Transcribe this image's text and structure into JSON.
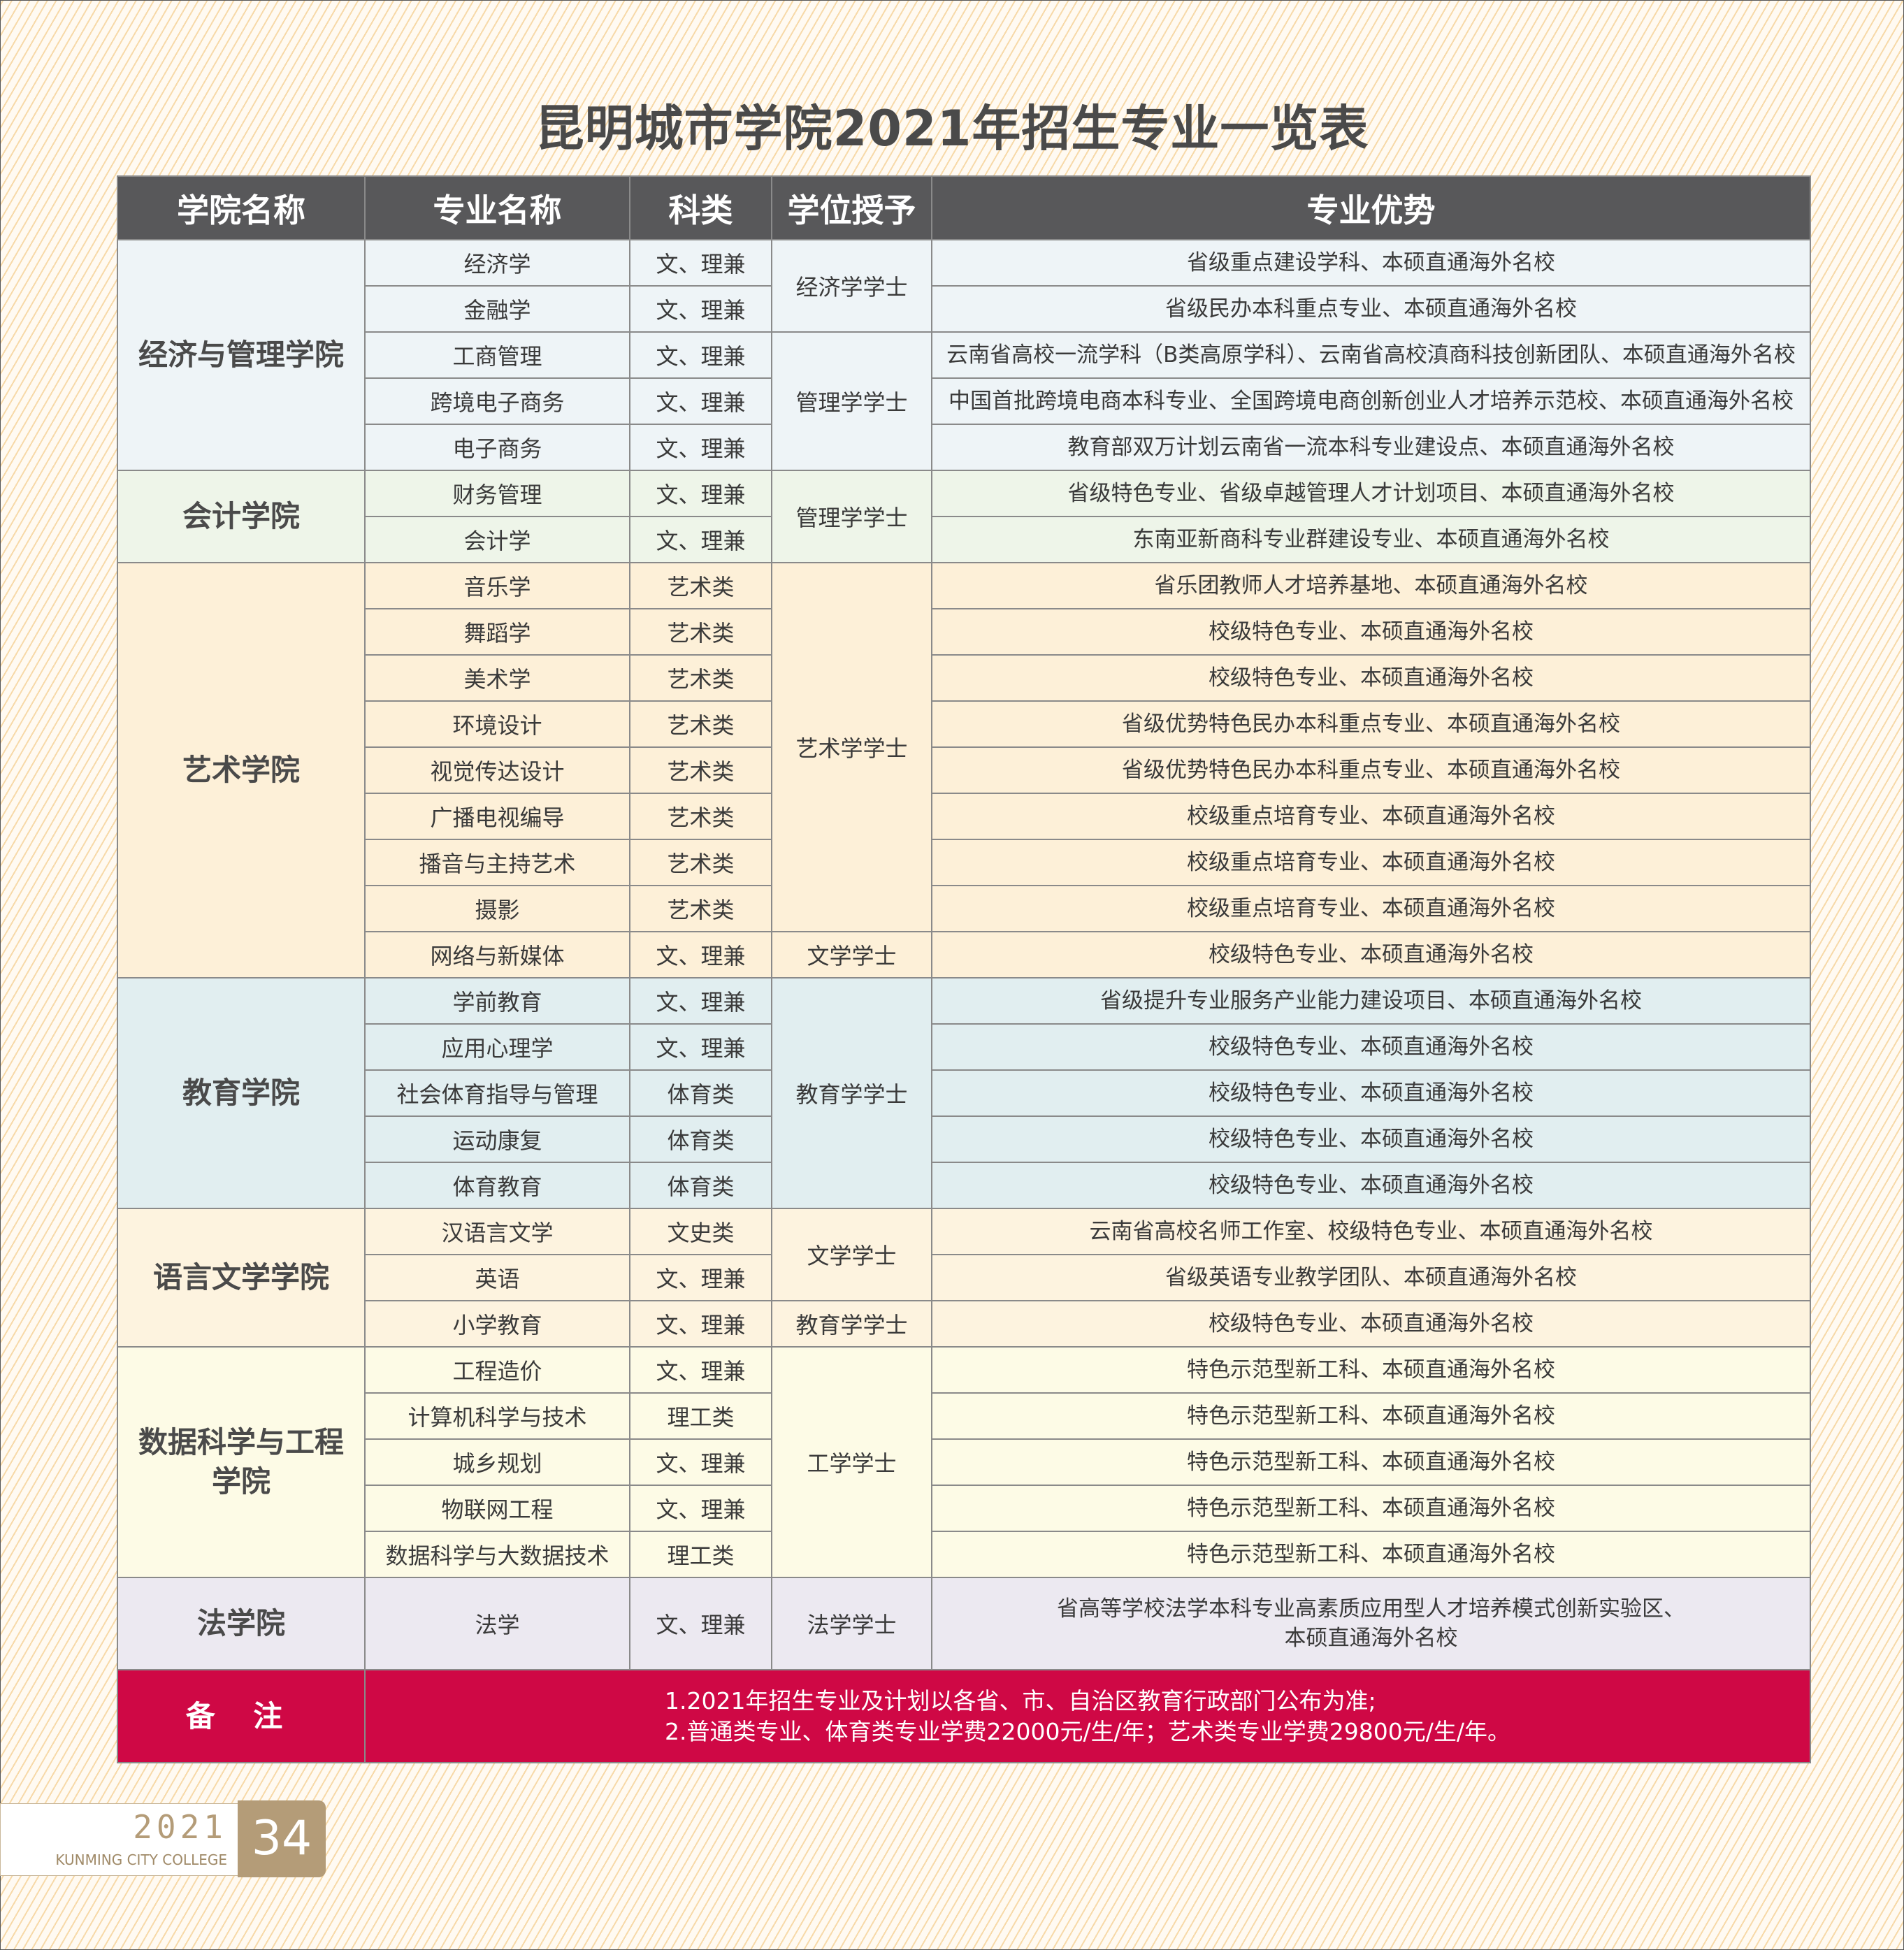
{
  "title": "昆明城市学院2021年招生专业一览表",
  "headers": [
    "学院名称",
    "专业名称",
    "科类",
    "学位授予",
    "专业优势"
  ],
  "colors": {
    "header": "#58585a",
    "note": "#cf0845",
    "accent": "#b49c78"
  },
  "groups": [
    {
      "college": "经济与管理学院",
      "bg": "#eef4f7",
      "rows": [
        {
          "major": "经济学",
          "category": "文、理兼",
          "advantage": "省级重点建设学科、本硕直通海外名校"
        },
        {
          "major": "金融学",
          "category": "文、理兼",
          "advantage": "省级民办本科重点专业、本硕直通海外名校"
        },
        {
          "major": "工商管理",
          "category": "文、理兼",
          "advantage": "云南省高校一流学科（B类高原学科）、云南省高校滇商科技创新团队、本硕直通海外名校"
        },
        {
          "major": "跨境电子商务",
          "category": "文、理兼",
          "advantage": "中国首批跨境电商本科专业、全国跨境电商创新创业人才培养示范校、本硕直通海外名校"
        },
        {
          "major": "电子商务",
          "category": "文、理兼",
          "advantage": "教育部双万计划云南省一流本科专业建设点、本硕直通海外名校"
        }
      ],
      "degrees": [
        {
          "label": "经济学学士",
          "span": 2
        },
        {
          "label": "管理学学士",
          "span": 3
        }
      ]
    },
    {
      "college": "会计学院",
      "bg": "#eef5e9",
      "rows": [
        {
          "major": "财务管理",
          "category": "文、理兼",
          "advantage": "省级特色专业、省级卓越管理人才计划项目、本硕直通海外名校"
        },
        {
          "major": "会计学",
          "category": "文、理兼",
          "advantage": "东南亚新商科专业群建设专业、本硕直通海外名校"
        }
      ],
      "degrees": [
        {
          "label": "管理学学士",
          "span": 2
        }
      ]
    },
    {
      "college": "艺术学院",
      "bg": "#fdf0d8",
      "rows": [
        {
          "major": "音乐学",
          "category": "艺术类",
          "advantage": "省乐团教师人才培养基地、本硕直通海外名校"
        },
        {
          "major": "舞蹈学",
          "category": "艺术类",
          "advantage": "校级特色专业、本硕直通海外名校"
        },
        {
          "major": "美术学",
          "category": "艺术类",
          "advantage": "校级特色专业、本硕直通海外名校"
        },
        {
          "major": "环境设计",
          "category": "艺术类",
          "advantage": "省级优势特色民办本科重点专业、本硕直通海外名校"
        },
        {
          "major": "视觉传达设计",
          "category": "艺术类",
          "advantage": "省级优势特色民办本科重点专业、本硕直通海外名校"
        },
        {
          "major": "广播电视编导",
          "category": "艺术类",
          "advantage": "校级重点培育专业、本硕直通海外名校"
        },
        {
          "major": "播音与主持艺术",
          "category": "艺术类",
          "advantage": "校级重点培育专业、本硕直通海外名校"
        },
        {
          "major": "摄影",
          "category": "艺术类",
          "advantage": "校级重点培育专业、本硕直通海外名校"
        },
        {
          "major": "网络与新媒体",
          "category": "文、理兼",
          "advantage": "校级特色专业、本硕直通海外名校"
        }
      ],
      "degrees": [
        {
          "label": "艺术学学士",
          "span": 8
        },
        {
          "label": "文学学士",
          "span": 1
        }
      ]
    },
    {
      "college": "教育学院",
      "bg": "#e1eef0",
      "rows": [
        {
          "major": "学前教育",
          "category": "文、理兼",
          "advantage": "省级提升专业服务产业能力建设项目、本硕直通海外名校"
        },
        {
          "major": "应用心理学",
          "category": "文、理兼",
          "advantage": "校级特色专业、本硕直通海外名校"
        },
        {
          "major": "社会体育指导与管理",
          "category": "体育类",
          "advantage": "校级特色专业、本硕直通海外名校"
        },
        {
          "major": "运动康复",
          "category": "体育类",
          "advantage": "校级特色专业、本硕直通海外名校"
        },
        {
          "major": "体育教育",
          "category": "体育类",
          "advantage": "校级特色专业、本硕直通海外名校"
        }
      ],
      "degrees": [
        {
          "label": "教育学学士",
          "span": 5
        }
      ]
    },
    {
      "college": "语言文学学院",
      "bg": "#fdf3df",
      "rows": [
        {
          "major": "汉语言文学",
          "category": "文史类",
          "advantage": "云南省高校名师工作室、校级特色专业、本硕直通海外名校"
        },
        {
          "major": "英语",
          "category": "文、理兼",
          "advantage": "省级英语专业教学团队、本硕直通海外名校"
        },
        {
          "major": "小学教育",
          "category": "文、理兼",
          "advantage": "校级特色专业、本硕直通海外名校"
        }
      ],
      "degrees": [
        {
          "label": "文学学士",
          "span": 2
        },
        {
          "label": "教育学学士",
          "span": 1
        }
      ]
    },
    {
      "college": "数据科学与工程学院",
      "bg": "#fdfbe6",
      "rows": [
        {
          "major": "工程造价",
          "category": "文、理兼",
          "advantage": "特色示范型新工科、本硕直通海外名校"
        },
        {
          "major": "计算机科学与技术",
          "category": "理工类",
          "advantage": "特色示范型新工科、本硕直通海外名校"
        },
        {
          "major": "城乡规划",
          "category": "文、理兼",
          "advantage": "特色示范型新工科、本硕直通海外名校"
        },
        {
          "major": "物联网工程",
          "category": "文、理兼",
          "advantage": "特色示范型新工科、本硕直通海外名校"
        },
        {
          "major": "数据科学与大数据技术",
          "category": "理工类",
          "advantage": "特色示范型新工科、本硕直通海外名校"
        }
      ],
      "degrees": [
        {
          "label": "工学学士",
          "span": 5
        }
      ]
    },
    {
      "college": "法学院",
      "bg": "#ece9f1",
      "law": true,
      "rows": [
        {
          "major": "法学",
          "category": "文、理兼",
          "advantage": "省高等学校法学本科专业高素质应用型人才培养模式创新实验区、\n本硕直通海外名校"
        }
      ],
      "degrees": [
        {
          "label": "法学学士",
          "span": 1
        }
      ]
    }
  ],
  "note": {
    "label": "备 注",
    "lines": [
      "1.2021年招生专业及计划以各省、市、自治区教育行政部门公布为准;",
      "2.普通类专业、体育类专业学费22000元/生/年；艺术类专业学费29800元/生/年。"
    ]
  },
  "footer": {
    "year": "2021",
    "college_en": "KUNMING CITY COLLEGE",
    "page": "34"
  }
}
